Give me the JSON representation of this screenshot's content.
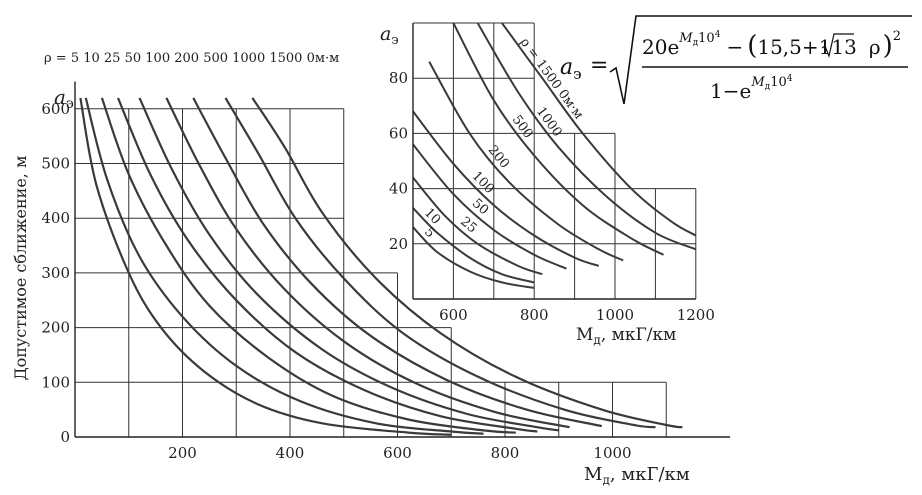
{
  "formula": {
    "lhs": "a",
    "lhs_sub": "э",
    "equals": "=",
    "num_coef": "20e",
    "exp_var": "M",
    "exp_sub": "д",
    "exp_tail": "10",
    "exp_pow": "4",
    "minus": "−",
    "paren_open": "(",
    "const1": "15,5+113",
    "rho": "ρ",
    "paren_close": ")",
    "square": "2",
    "den_one": "1−e"
  },
  "chart_data": [
    {
      "type": "line",
      "id": "main",
      "title": "",
      "xlabel": "М",
      "xlabel_sub": "д",
      "xlabel_unit": ", мкГ/км",
      "ylabel": "Допустимое сближение, м",
      "y_axis_symbol": "a",
      "y_axis_symbol_sub": "э",
      "xlim": [
        0,
        1200
      ],
      "ylim": [
        0,
        650
      ],
      "x_ticks": [
        200,
        400,
        600,
        800,
        1000
      ],
      "y_ticks": [
        0,
        100,
        200,
        300,
        400,
        500,
        600
      ],
      "legend": {
        "prefix": "ρ =",
        "values": [
          "5",
          "10",
          "25",
          "50",
          "100",
          "200",
          "500",
          "1000",
          "1500"
        ],
        "unit": "0м·м"
      },
      "series": [
        {
          "name": "5",
          "points": [
            [
              10,
              620
            ],
            [
              40,
              460
            ],
            [
              100,
              300
            ],
            [
              160,
              200
            ],
            [
              240,
              120
            ],
            [
              340,
              60
            ],
            [
              460,
              25
            ],
            [
              620,
              8
            ],
            [
              700,
              4
            ]
          ]
        },
        {
          "name": "10",
          "points": [
            [
              20,
              620
            ],
            [
              60,
              470
            ],
            [
              120,
              330
            ],
            [
              200,
              220
            ],
            [
              300,
              130
            ],
            [
              420,
              65
            ],
            [
              560,
              25
            ],
            [
              700,
              10
            ],
            [
              760,
              6
            ]
          ]
        },
        {
          "name": "25",
          "points": [
            [
              50,
              620
            ],
            [
              100,
              480
            ],
            [
              170,
              350
            ],
            [
              250,
              240
            ],
            [
              360,
              145
            ],
            [
              480,
              75
            ],
            [
              620,
              32
            ],
            [
              760,
              12
            ],
            [
              820,
              8
            ]
          ]
        },
        {
          "name": "50",
          "points": [
            [
              80,
              620
            ],
            [
              140,
              480
            ],
            [
              210,
              360
            ],
            [
              300,
              250
            ],
            [
              410,
              155
            ],
            [
              540,
              85
            ],
            [
              680,
              38
            ],
            [
              820,
              15
            ],
            [
              860,
              10
            ]
          ]
        },
        {
          "name": "100",
          "points": [
            [
              120,
              620
            ],
            [
              180,
              490
            ],
            [
              250,
              370
            ],
            [
              340,
              260
            ],
            [
              460,
              160
            ],
            [
              590,
              90
            ],
            [
              730,
              42
            ],
            [
              860,
              18
            ],
            [
              900,
              12
            ]
          ]
        },
        {
          "name": "200",
          "points": [
            [
              170,
              620
            ],
            [
              230,
              500
            ],
            [
              300,
              380
            ],
            [
              390,
              270
            ],
            [
              500,
              175
            ],
            [
              630,
              100
            ],
            [
              780,
              46
            ],
            [
              920,
              18
            ]
          ]
        },
        {
          "name": "500",
          "points": [
            [
              220,
              620
            ],
            [
              280,
              510
            ],
            [
              350,
              390
            ],
            [
              440,
              280
            ],
            [
              550,
              185
            ],
            [
              690,
              105
            ],
            [
              840,
              50
            ],
            [
              980,
              20
            ]
          ]
        },
        {
          "name": "1000",
          "points": [
            [
              280,
              620
            ],
            [
              340,
              520
            ],
            [
              410,
              400
            ],
            [
              500,
              290
            ],
            [
              610,
              190
            ],
            [
              750,
              110
            ],
            [
              910,
              50
            ],
            [
              1040,
              22
            ],
            [
              1080,
              18
            ]
          ]
        },
        {
          "name": "1500",
          "points": [
            [
              330,
              620
            ],
            [
              390,
              530
            ],
            [
              460,
              410
            ],
            [
              560,
              290
            ],
            [
              680,
              190
            ],
            [
              820,
              110
            ],
            [
              980,
              50
            ],
            [
              1100,
              22
            ],
            [
              1130,
              18
            ]
          ]
        }
      ]
    },
    {
      "type": "line",
      "id": "inset",
      "title": "",
      "xlabel": "М",
      "xlabel_sub": "д",
      "xlabel_unit": ", мкГ/км",
      "y_axis_symbol": "a",
      "y_axis_symbol_sub": "э",
      "xlim": [
        500,
        1200
      ],
      "ylim": [
        0,
        100
      ],
      "x_ticks": [
        600,
        800,
        1000,
        1200
      ],
      "y_ticks": [
        20,
        40,
        60,
        80
      ],
      "series": [
        {
          "name": "5",
          "label": "5",
          "points": [
            [
              500,
              26
            ],
            [
              560,
              17
            ],
            [
              640,
              10
            ],
            [
              720,
              6
            ],
            [
              800,
              4
            ]
          ]
        },
        {
          "name": "10",
          "label": "10",
          "points": [
            [
              500,
              33
            ],
            [
              560,
              24
            ],
            [
              640,
              15
            ],
            [
              720,
              9
            ],
            [
              800,
              6
            ]
          ]
        },
        {
          "name": "25",
          "label": "25",
          "points": [
            [
              500,
              44
            ],
            [
              580,
              30
            ],
            [
              660,
              20
            ],
            [
              760,
              12
            ],
            [
              820,
              9
            ]
          ]
        },
        {
          "name": "50",
          "label": "50",
          "points": [
            [
              500,
              56
            ],
            [
              600,
              38
            ],
            [
              700,
              25
            ],
            [
              800,
              16
            ],
            [
              880,
              11
            ]
          ]
        },
        {
          "name": "100",
          "label": "100",
          "points": [
            [
              500,
              68
            ],
            [
              600,
              49
            ],
            [
              700,
              34
            ],
            [
              800,
              23
            ],
            [
              900,
              15
            ],
            [
              960,
              12
            ]
          ]
        },
        {
          "name": "200",
          "label": "200",
          "points": [
            [
              540,
              86
            ],
            [
              640,
              60
            ],
            [
              740,
              42
            ],
            [
              860,
              27
            ],
            [
              960,
              18
            ],
            [
              1020,
              14
            ]
          ]
        },
        {
          "name": "500",
          "label": "500",
          "points": [
            [
              600,
              100
            ],
            [
              700,
              72
            ],
            [
              800,
              52
            ],
            [
              920,
              34
            ],
            [
              1040,
              22
            ],
            [
              1120,
              16
            ]
          ]
        },
        {
          "name": "1000",
          "label": "1000",
          "points": [
            [
              660,
              100
            ],
            [
              760,
              75
            ],
            [
              860,
              55
            ],
            [
              980,
              37
            ],
            [
              1100,
              24
            ],
            [
              1200,
              18
            ]
          ]
        },
        {
          "name": "1500",
          "label": "ρ = 1500 0м·м",
          "points": [
            [
              720,
              100
            ],
            [
              820,
              80
            ],
            [
              920,
              60
            ],
            [
              1040,
              40
            ],
            [
              1140,
              28
            ],
            [
              1200,
              23
            ]
          ]
        }
      ]
    }
  ]
}
